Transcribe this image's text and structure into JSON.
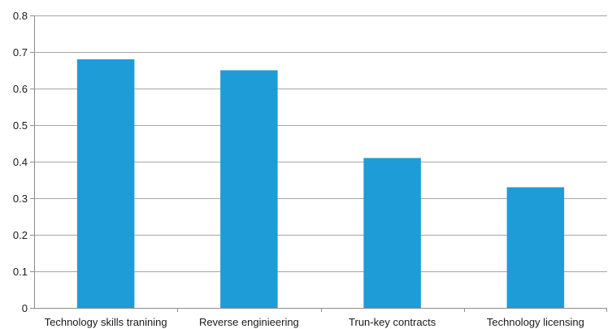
{
  "chart_data": {
    "type": "bar",
    "categories": [
      "Technology skills tranining",
      "Reverse enginieering",
      "Trun-key contracts",
      "Technology licensing"
    ],
    "values": [
      0.68,
      0.65,
      0.41,
      0.33
    ],
    "title": "",
    "xlabel": "",
    "ylabel": "",
    "ylim": [
      0,
      0.8
    ],
    "yticks": [
      "0",
      "0.1",
      "0.2",
      "0.3",
      "0.4",
      "0.5",
      "0.6",
      "0.7",
      "0.8"
    ],
    "grid": true,
    "legend": "none",
    "bar_color": "#1e9cd7"
  }
}
